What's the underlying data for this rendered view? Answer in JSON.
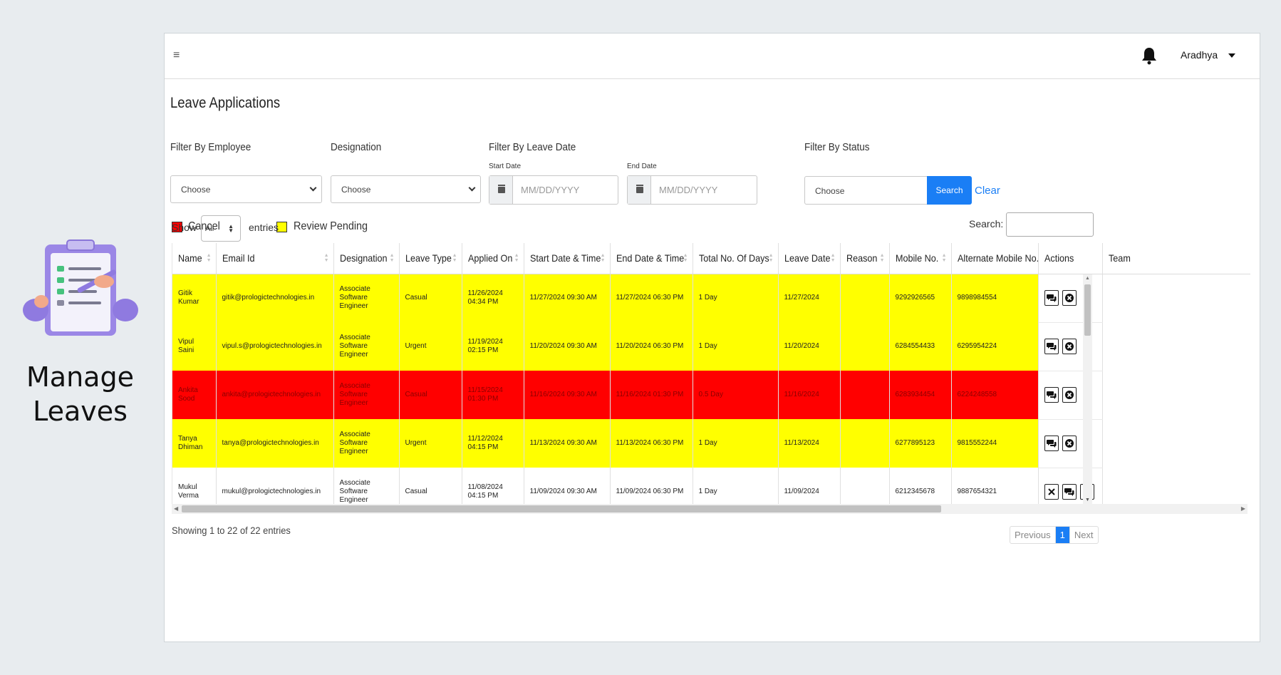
{
  "hero": {
    "title_line1": "Manage",
    "title_line2": "Leaves"
  },
  "topbar": {
    "user_name": "Aradhya"
  },
  "page": {
    "title": "Leave Applications"
  },
  "filters": {
    "employee_label": "Filter By Employee",
    "employee_value": "Choose",
    "designation_label": "Designation",
    "designation_value": "Choose",
    "leave_date_label": "Filter By Leave Date",
    "start_date_label": "Start Date",
    "start_date_placeholder": "MM/DD/YYYY",
    "end_date_label": "End Date",
    "end_date_placeholder": "MM/DD/YYYY",
    "status_label": "Filter By Status",
    "status_value": "Choose",
    "search_button": "Search",
    "clear_link": "Clear"
  },
  "legend": {
    "cancel_label": "Cancel",
    "cancel_color": "#ff0000",
    "pending_label": "Review Pending",
    "pending_color": "#ffff00"
  },
  "table_controls": {
    "show_label": "Show",
    "show_value": "All",
    "entries_label": "entries",
    "search_label": "Search:"
  },
  "table": {
    "headers": [
      "Name",
      "Email Id",
      "Designation",
      "Leave Type",
      "Applied On",
      "Start Date & Time",
      "End Date & Time",
      "Total No. Of Days",
      "Leave Date",
      "Reason",
      "Mobile No.",
      "Alternate Mobile No.",
      "Actions",
      "Team"
    ],
    "rows": [
      {
        "status": "pending",
        "name": "Gitik Kumar",
        "email": "gitik@prologictechnologies.in",
        "designation": "Associate Software Engineer",
        "leave_type": "Casual",
        "applied_on": "11/26/2024 04:34 PM",
        "start": "11/27/2024 09:30 AM",
        "end": "11/27/2024 06:30 PM",
        "days": "1 Day",
        "leave_date": "11/27/2024",
        "reason": "",
        "mobile": "9292926565",
        "alt_mobile": "9898984554"
      },
      {
        "status": "pending",
        "name": "Vipul Saini",
        "email": "vipul.s@prologictechnologies.in",
        "designation": "Associate Software Engineer",
        "leave_type": "Urgent",
        "applied_on": "11/19/2024 02:15 PM",
        "start": "11/20/2024 09:30 AM",
        "end": "11/20/2024 06:30 PM",
        "days": "1 Day",
        "leave_date": "11/20/2024",
        "reason": "",
        "mobile": "6284554433",
        "alt_mobile": "6295954224"
      },
      {
        "status": "cancel",
        "name": "Ankita Sood",
        "email": "ankita@prologictechnologies.in",
        "designation": "Associate Software Engineer",
        "leave_type": "Casual",
        "applied_on": "11/15/2024 01:30 PM",
        "start": "11/16/2024 09:30 AM",
        "end": "11/16/2024 01:30 PM",
        "days": "0.5 Day",
        "leave_date": "11/16/2024",
        "reason": "",
        "mobile": "6283934454",
        "alt_mobile": "6224248558"
      },
      {
        "status": "pending",
        "name": "Tanya Dhiman",
        "email": "tanya@prologictechnologies.in",
        "designation": "Associate Software Engineer",
        "leave_type": "Urgent",
        "applied_on": "11/12/2024 04:15 PM",
        "start": "11/13/2024 09:30 AM",
        "end": "11/13/2024 06:30 PM",
        "days": "1 Day",
        "leave_date": "11/13/2024",
        "reason": "",
        "mobile": "6277895123",
        "alt_mobile": "9815552244"
      },
      {
        "status": "normal",
        "name": "Mukul Verma",
        "email": "mukul@prologictechnologies.in",
        "designation": "Associate Software Engineer",
        "leave_type": "Casual",
        "applied_on": "11/08/2024 04:15 PM",
        "start": "11/09/2024 09:30 AM",
        "end": "11/09/2024 06:30 PM",
        "days": "1 Day",
        "leave_date": "11/09/2024",
        "reason": "",
        "mobile": "6212345678",
        "alt_mobile": "9887654321"
      }
    ]
  },
  "footer": {
    "showing_text": "Showing 1 to 22 of 22 entries",
    "previous_label": "Previous",
    "current_page": "1",
    "next_label": "Next"
  }
}
